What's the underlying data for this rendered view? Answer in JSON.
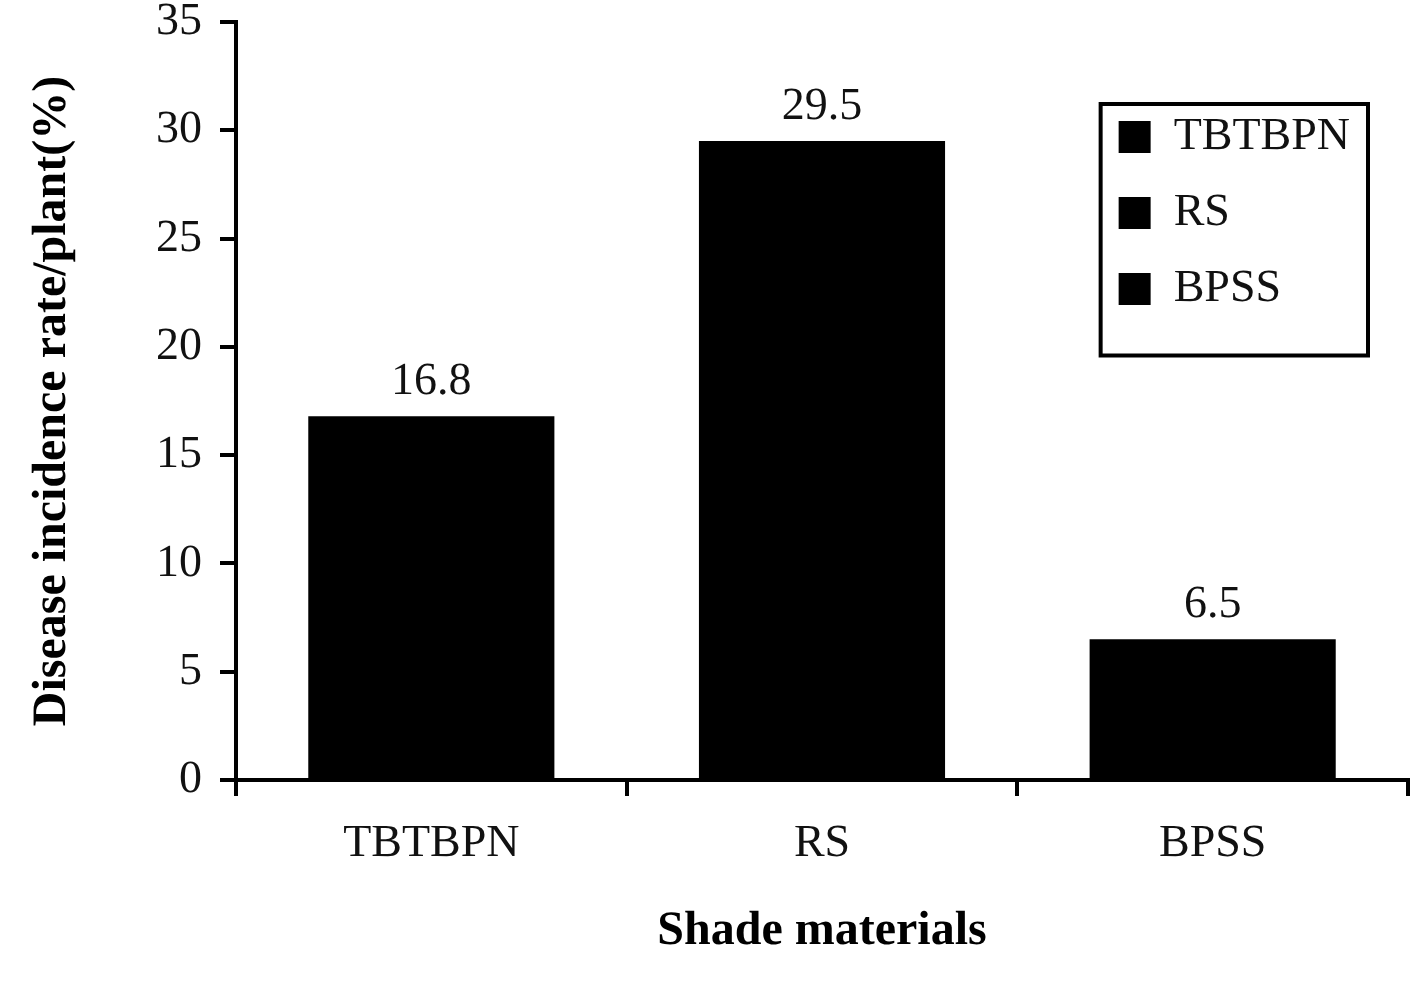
{
  "chart_data": {
    "type": "bar",
    "xlabel": "Shade materials",
    "ylabel": "Disease incidence rate/plant(%)",
    "categories": [
      "TBTBPN",
      "RS",
      "BPSS"
    ],
    "series": [
      {
        "name": "TBTBPN",
        "color": "#000000",
        "values": [
          16.8,
          null,
          null
        ]
      },
      {
        "name": "RS",
        "color": "#000000",
        "values": [
          null,
          29.5,
          null
        ]
      },
      {
        "name": "BPSS",
        "color": "#000000",
        "values": [
          null,
          null,
          6.5
        ]
      }
    ],
    "ylim": [
      0,
      35
    ],
    "yticks": [
      0,
      5,
      10,
      15,
      20,
      25,
      30,
      35
    ],
    "data_labels": true,
    "legend": "top right",
    "grid": false
  }
}
